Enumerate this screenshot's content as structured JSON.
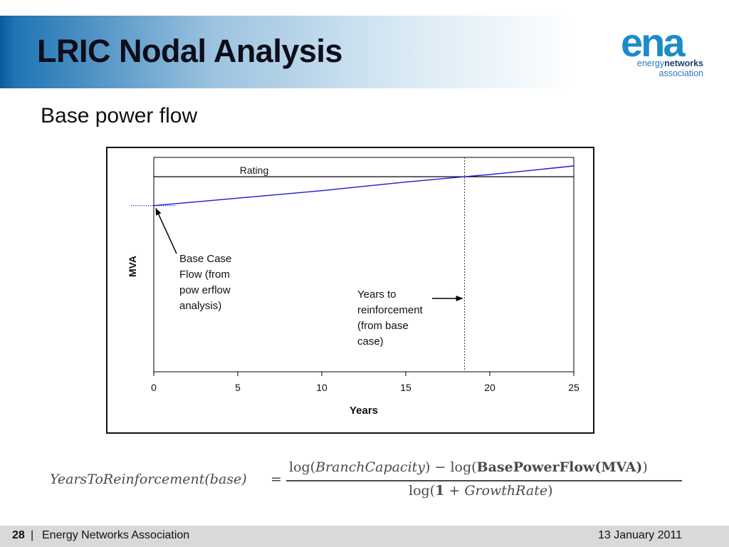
{
  "slide": {
    "title": "LRIC Nodal Analysis",
    "subtitle": "Base power flow"
  },
  "logo": {
    "mark": "ena",
    "line1_prefix": "energy",
    "line1_bold": "networks",
    "line2": "association"
  },
  "chart_data": {
    "type": "line",
    "title": "",
    "xlabel": "Years",
    "ylabel": "MVA",
    "xlim": [
      0,
      25
    ],
    "x_ticks": [
      "0",
      "5",
      "10",
      "15",
      "20",
      "25"
    ],
    "grid": false,
    "y_ticks_shown": false,
    "series": [
      {
        "x": [
          0,
          5,
          10,
          15,
          18.5,
          20,
          25
        ],
        "y": [
          0.775,
          0.81,
          0.845,
          0.885,
          0.91,
          0.92,
          0.96
        ]
      }
    ],
    "rating_line": {
      "label": "Rating",
      "y": 0.91
    },
    "reinforcement_year": 18.5,
    "annotations": {
      "base_case": [
        "Base Case",
        "Flow  (from",
        "pow erflow",
        "analysis)"
      ],
      "years_to_reinforcement": [
        "Years to",
        "reinforcement",
        "(from base",
        "case)"
      ]
    },
    "colors": {
      "series": "#1a1ad1",
      "axes": "#000000"
    }
  },
  "formula": {
    "lhs": "YearsToReinforcement(base)",
    "equals": "=",
    "num_log1": "log(",
    "num_var1": "BranchCapacity",
    "num_mid": ") − log(",
    "num_var2": "BasePowerFlow(MVA)",
    "num_end": ")",
    "den_log": "log(",
    "den_one": "1",
    "den_plus": " + ",
    "den_var": "GrowthRate",
    "den_end": ")"
  },
  "footer": {
    "page_number": "28",
    "separator": "|",
    "organization": "Energy Networks Association",
    "date": "13 January 2011"
  }
}
